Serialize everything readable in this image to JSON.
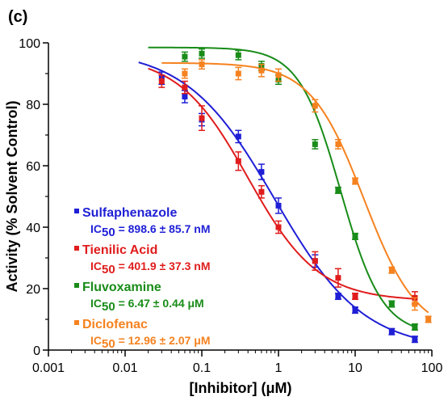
{
  "panel_label": "(c)",
  "chart_data": {
    "type": "scatter",
    "xlabel": "[Inhibitor] (μM)",
    "ylabel": "Activity (% Solvent Control)",
    "xscale": "log",
    "xlim": [
      0.001,
      100
    ],
    "ylim": [
      0,
      100
    ],
    "xticks": [
      0.001,
      0.01,
      0.1,
      1,
      10,
      100
    ],
    "xtick_labels": [
      "0.001",
      "0.01",
      "0.1",
      "1",
      "10",
      "100"
    ],
    "yticks": [
      0,
      20,
      40,
      60,
      80,
      100
    ],
    "ytick_labels": [
      "0",
      "20",
      "40",
      "60",
      "80",
      "100"
    ],
    "grid": false,
    "legend_position": "bottom-left",
    "series": [
      {
        "name": "Sulfaphenazole",
        "color": "#1f1fd6",
        "ic50_label": "IC50 = 898.6 ± 85.7 nM",
        "ic50_prefix": "IC",
        "ic50_sub": "50",
        "ic50_value": " = 898.6 ± 85.7 nM",
        "points": [
          {
            "x": 0.03,
            "y": 88.5,
            "err": 2
          },
          {
            "x": 0.06,
            "y": 82.5,
            "err": 2
          },
          {
            "x": 0.1,
            "y": 75,
            "err": 2
          },
          {
            "x": 0.3,
            "y": 69.5,
            "err": 2
          },
          {
            "x": 0.6,
            "y": 58,
            "err": 2.5
          },
          {
            "x": 1,
            "y": 47,
            "err": 2.5
          },
          {
            "x": 3,
            "y": 29,
            "err": 2
          },
          {
            "x": 6,
            "y": 17.5,
            "err": 1
          },
          {
            "x": 10,
            "y": 13,
            "err": 1
          },
          {
            "x": 30,
            "y": 6,
            "err": 1
          },
          {
            "x": 60,
            "y": 3.5,
            "err": 1
          }
        ],
        "curve": {
          "top": 98,
          "bottom": 0,
          "ic50": 0.8986,
          "hill": 0.75,
          "xmin": 0.015,
          "xmax": 60
        }
      },
      {
        "name": "Tienilic Acid",
        "color": "#e01c1c",
        "ic50_label": "IC50 = 401.9 ± 37.3 nM",
        "ic50_prefix": "IC",
        "ic50_sub": "50",
        "ic50_value": " = 401.9 ± 37.3 nM",
        "points": [
          {
            "x": 0.03,
            "y": 87.5,
            "err": 2
          },
          {
            "x": 0.06,
            "y": 85.5,
            "err": 2
          },
          {
            "x": 0.1,
            "y": 75.5,
            "err": 4
          },
          {
            "x": 0.3,
            "y": 61.5,
            "err": 3
          },
          {
            "x": 0.6,
            "y": 51.5,
            "err": 2
          },
          {
            "x": 1,
            "y": 40,
            "err": 2
          },
          {
            "x": 3,
            "y": 29,
            "err": 3
          },
          {
            "x": 6,
            "y": 23.5,
            "err": 3
          },
          {
            "x": 10,
            "y": 17.5,
            "err": 1
          },
          {
            "x": 60,
            "y": 17,
            "err": 2
          }
        ],
        "curve": {
          "top": 96,
          "bottom": 16,
          "ic50": 0.4019,
          "hill": 0.95,
          "xmin": 0.02,
          "xmax": 60
        }
      },
      {
        "name": "Fluvoxamine",
        "color": "#198c19",
        "ic50_label": "IC50 = 6.47 ± 0.44 μM",
        "ic50_prefix": "IC",
        "ic50_sub": "50",
        "ic50_value": " = 6.47 ± 0.44 μM",
        "points": [
          {
            "x": 0.06,
            "y": 95.5,
            "err": 1.5
          },
          {
            "x": 0.1,
            "y": 96.5,
            "err": 1.5
          },
          {
            "x": 0.3,
            "y": 96,
            "err": 1.5
          },
          {
            "x": 0.6,
            "y": 92.5,
            "err": 1.5
          },
          {
            "x": 1,
            "y": 88,
            "err": 1.5
          },
          {
            "x": 3,
            "y": 67,
            "err": 1.5
          },
          {
            "x": 6,
            "y": 52,
            "err": 1
          },
          {
            "x": 10,
            "y": 37,
            "err": 1
          },
          {
            "x": 30,
            "y": 15,
            "err": 1
          },
          {
            "x": 60,
            "y": 7.5,
            "err": 1
          }
        ],
        "curve": {
          "top": 98.5,
          "bottom": 5,
          "ic50": 6.47,
          "hill": 1.6,
          "xmin": 0.02,
          "xmax": 60
        }
      },
      {
        "name": "Diclofenac",
        "color": "#f5821f",
        "ic50_label": "IC50 = 12.96 ± 2.07 μM",
        "ic50_prefix": "IC",
        "ic50_sub": "50",
        "ic50_value": " = 12.96 ± 2.07 μM",
        "points": [
          {
            "x": 0.06,
            "y": 90,
            "err": 1.5
          },
          {
            "x": 0.1,
            "y": 93,
            "err": 1.5
          },
          {
            "x": 0.3,
            "y": 90,
            "err": 2
          },
          {
            "x": 0.6,
            "y": 91,
            "err": 2
          },
          {
            "x": 1,
            "y": 89.5,
            "err": 2
          },
          {
            "x": 3,
            "y": 79.5,
            "err": 2
          },
          {
            "x": 6,
            "y": 67,
            "err": 1.5
          },
          {
            "x": 10,
            "y": 55,
            "err": 1
          },
          {
            "x": 30,
            "y": 26,
            "err": 1
          },
          {
            "x": 60,
            "y": 15,
            "err": 2
          },
          {
            "x": 90,
            "y": 10,
            "err": 1
          }
        ],
        "curve": {
          "top": 93.5,
          "bottom": 5,
          "ic50": 12.96,
          "hill": 1.25,
          "xmin": 0.03,
          "xmax": 90
        }
      }
    ]
  }
}
